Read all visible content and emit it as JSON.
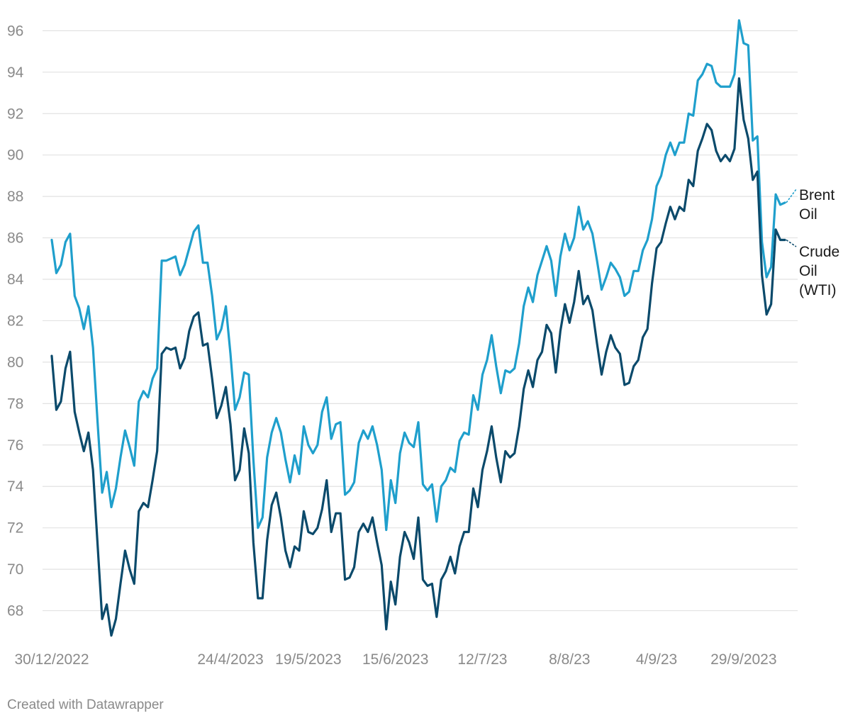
{
  "footer": {
    "credit": "Created with Datawrapper"
  },
  "chart_data": {
    "type": "line",
    "title": "",
    "xlabel": "",
    "ylabel": "",
    "ylim": [
      67.3,
      96.8
    ],
    "y_ticks": [
      68,
      70,
      72,
      74,
      76,
      78,
      80,
      82,
      84,
      86,
      88,
      90,
      92,
      94,
      96
    ],
    "x_tick_labels": [
      "30/12/2022",
      "24/4/2023",
      "19/5/2023",
      "15/6/2023",
      "12/7/23",
      "8/8/23",
      "4/9/23",
      "29/9/2023"
    ],
    "x_tick_index": [
      0,
      39,
      56,
      75,
      94,
      113,
      132,
      151
    ],
    "grid": true,
    "legend": "inline labels at right end of lines",
    "colors": {
      "brent": "#1f9fcc",
      "wti": "#0b4a6b",
      "grid": "#e2e2e2"
    },
    "series": [
      {
        "name": "Brent Oil",
        "label_lines": [
          "Brent",
          "Oil"
        ],
        "color": "#1f9fcc",
        "values": [
          85.9,
          84.3,
          84.7,
          85.8,
          86.2,
          83.2,
          82.6,
          81.6,
          82.7,
          80.7,
          77.1,
          73.7,
          74.7,
          73.0,
          73.9,
          75.4,
          76.7,
          75.9,
          75.0,
          78.1,
          78.6,
          78.3,
          79.2,
          79.7,
          84.9,
          84.9,
          85.0,
          85.1,
          84.2,
          84.7,
          85.5,
          86.3,
          86.6,
          84.8,
          84.8,
          83.2,
          81.1,
          81.6,
          82.7,
          80.4,
          77.7,
          78.3,
          79.5,
          79.4,
          75.3,
          72.0,
          72.5,
          75.4,
          76.6,
          77.3,
          76.6,
          75.3,
          74.2,
          75.5,
          74.6,
          76.9,
          76.0,
          75.6,
          76.0,
          77.6,
          78.3,
          76.3,
          77.0,
          77.1,
          73.6,
          73.8,
          74.2,
          76.1,
          76.7,
          76.3,
          76.9,
          76.0,
          74.8,
          71.9,
          74.3,
          73.2,
          75.6,
          76.6,
          76.1,
          75.9,
          77.1,
          74.1,
          73.8,
          74.1,
          72.3,
          74.0,
          74.3,
          74.9,
          74.7,
          76.2,
          76.6,
          76.5,
          78.4,
          77.7,
          79.4,
          80.1,
          81.3,
          79.8,
          78.5,
          79.6,
          79.5,
          79.7,
          80.9,
          82.7,
          83.6,
          82.9,
          84.2,
          84.9,
          85.6,
          84.9,
          83.2,
          85.1,
          86.2,
          85.4,
          86.0,
          87.5,
          86.4,
          86.8,
          86.2,
          84.9,
          83.5,
          84.1,
          84.8,
          84.5,
          84.1,
          83.2,
          83.4,
          84.4,
          84.4,
          85.4,
          85.9,
          86.9,
          88.5,
          89.0,
          90.0,
          90.6,
          90.0,
          90.6,
          90.6,
          92.0,
          91.9,
          93.6,
          93.9,
          94.4,
          94.3,
          93.5,
          93.3,
          93.3,
          93.3,
          93.9,
          96.5,
          95.4,
          95.3,
          90.7,
          90.9,
          85.8,
          84.1,
          84.6,
          88.1,
          87.6,
          87.7
        ]
      },
      {
        "name": "Crude Oil (WTI)",
        "label_lines": [
          "Crude",
          "Oil",
          "(WTI)"
        ],
        "color": "#0b4a6b",
        "values": [
          80.3,
          77.7,
          78.1,
          79.7,
          80.5,
          77.6,
          76.6,
          75.7,
          76.6,
          74.8,
          71.2,
          67.6,
          68.3,
          66.8,
          67.6,
          69.3,
          70.9,
          70.0,
          69.3,
          72.8,
          73.2,
          73.0,
          74.3,
          75.7,
          80.4,
          80.7,
          80.6,
          80.7,
          79.7,
          80.2,
          81.5,
          82.2,
          82.4,
          80.8,
          80.9,
          79.2,
          77.3,
          77.9,
          78.8,
          77.0,
          74.3,
          74.8,
          76.8,
          75.6,
          71.3,
          68.6,
          68.6,
          71.4,
          73.1,
          73.7,
          72.5,
          70.9,
          70.1,
          71.1,
          70.9,
          72.8,
          71.8,
          71.7,
          72.0,
          72.9,
          74.3,
          71.8,
          72.7,
          72.7,
          69.5,
          69.6,
          70.1,
          71.8,
          72.2,
          71.8,
          72.5,
          71.3,
          70.2,
          67.1,
          69.4,
          68.3,
          70.6,
          71.8,
          71.3,
          70.5,
          72.5,
          69.5,
          69.2,
          69.3,
          67.7,
          69.5,
          69.9,
          70.6,
          69.8,
          71.1,
          71.8,
          71.8,
          73.9,
          73.0,
          74.8,
          75.7,
          76.9,
          75.4,
          74.2,
          75.7,
          75.4,
          75.6,
          76.9,
          78.7,
          79.6,
          78.8,
          80.1,
          80.5,
          81.8,
          81.4,
          79.5,
          81.5,
          82.8,
          81.9,
          82.9,
          84.4,
          82.8,
          83.2,
          82.5,
          80.9,
          79.4,
          80.5,
          81.3,
          80.7,
          80.4,
          78.9,
          79.0,
          79.8,
          80.1,
          81.2,
          81.6,
          83.8,
          85.5,
          85.8,
          86.7,
          87.5,
          86.9,
          87.5,
          87.3,
          88.8,
          88.5,
          90.2,
          90.8,
          91.5,
          91.2,
          90.2,
          89.7,
          90.0,
          89.7,
          90.3,
          93.7,
          91.7,
          90.8,
          88.8,
          89.2,
          84.2,
          82.3,
          82.8,
          86.4,
          85.9,
          85.9
        ]
      }
    ]
  }
}
